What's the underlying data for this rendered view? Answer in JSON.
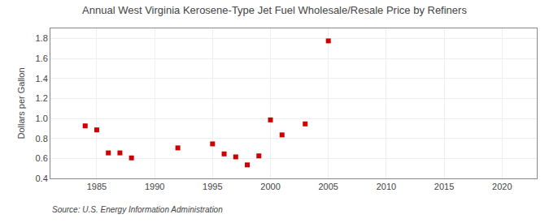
{
  "chart_data": {
    "type": "scatter",
    "title": "Annual West Virginia Kerosene-Type Jet Fuel Wholesale/Resale Price by Refiners",
    "ylabel": "Dollars per Gallon",
    "annotations": [
      "Source: U.S. Energy Information Administration"
    ],
    "x": [
      1984,
      1985,
      1986,
      1987,
      1988,
      1992,
      1995,
      1996,
      1997,
      1998,
      1999,
      2000,
      2001,
      2003,
      2005
    ],
    "values": [
      0.925,
      0.885,
      0.655,
      0.655,
      0.605,
      0.705,
      0.745,
      0.645,
      0.615,
      0.535,
      0.625,
      0.985,
      0.835,
      0.945,
      1.775
    ],
    "color": "#CC0000",
    "marker": "square",
    "xlim": [
      1981,
      2023
    ],
    "ylim": [
      0.4,
      1.9
    ],
    "xticks": [
      1985,
      1990,
      1995,
      2000,
      2005,
      2010,
      2015,
      2020
    ],
    "yticks": [
      0.4,
      0.6,
      0.8,
      {
        "value": 1.0,
        "label": "1.0"
      },
      1.2,
      1.4,
      1.6,
      1.8
    ],
    "grid": true
  }
}
